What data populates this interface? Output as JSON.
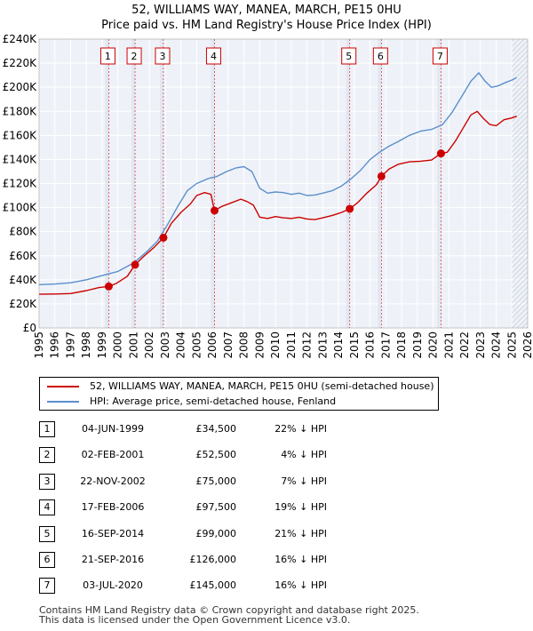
{
  "chart_data": {
    "type": "line",
    "title": "52, WILLIAMS WAY, MANEA, MARCH, PE15 0HU",
    "subtitle": "Price paid vs. HM Land Registry's House Price Index (HPI)",
    "xlim": [
      1995,
      2026
    ],
    "ylim": [
      0,
      240000
    ],
    "x_ticks": [
      "1995",
      "1996",
      "1997",
      "1998",
      "1999",
      "2000",
      "2001",
      "2002",
      "2003",
      "2004",
      "2005",
      "2006",
      "2007",
      "2008",
      "2009",
      "2010",
      "2011",
      "2012",
      "2013",
      "2014",
      "2015",
      "2016",
      "2017",
      "2018",
      "2019",
      "2020",
      "2021",
      "2022",
      "2023",
      "2024",
      "2025",
      "2026"
    ],
    "y_ticks": [
      {
        "value": 0,
        "label": "£0"
      },
      {
        "value": 20000,
        "label": "£20K"
      },
      {
        "value": 40000,
        "label": "£40K"
      },
      {
        "value": 60000,
        "label": "£60K"
      },
      {
        "value": 80000,
        "label": "£80K"
      },
      {
        "value": 100000,
        "label": "£100K"
      },
      {
        "value": 120000,
        "label": "£120K"
      },
      {
        "value": 140000,
        "label": "£140K"
      },
      {
        "value": 160000,
        "label": "£160K"
      },
      {
        "value": 180000,
        "label": "£180K"
      },
      {
        "value": 200000,
        "label": "£200K"
      },
      {
        "value": 220000,
        "label": "£220K"
      },
      {
        "value": 240000,
        "label": "£240K"
      }
    ],
    "series": [
      {
        "name": "52, WILLIAMS WAY, MANEA, MARCH, PE15 0HU (semi-detached house)",
        "color": "#cc0000",
        "points": [
          [
            1995.0,
            28000
          ],
          [
            1996.0,
            28200
          ],
          [
            1997.0,
            28600
          ],
          [
            1998.0,
            31000
          ],
          [
            1998.8,
            33500
          ],
          [
            1999.42,
            34500
          ],
          [
            1999.9,
            37000
          ],
          [
            2000.6,
            43000
          ],
          [
            2001.09,
            52500
          ],
          [
            2001.6,
            59000
          ],
          [
            2002.3,
            67000
          ],
          [
            2002.89,
            75000
          ],
          [
            2003.4,
            87000
          ],
          [
            2004.0,
            96000
          ],
          [
            2004.6,
            103000
          ],
          [
            2005.0,
            110000
          ],
          [
            2005.5,
            112500
          ],
          [
            2005.9,
            111000
          ],
          [
            2006.13,
            97500
          ],
          [
            2006.6,
            101000
          ],
          [
            2007.2,
            104000
          ],
          [
            2007.8,
            107000
          ],
          [
            2008.2,
            105000
          ],
          [
            2008.6,
            102000
          ],
          [
            2009.0,
            92000
          ],
          [
            2009.5,
            91000
          ],
          [
            2010.0,
            92500
          ],
          [
            2010.5,
            91500
          ],
          [
            2011.0,
            91000
          ],
          [
            2011.5,
            92000
          ],
          [
            2012.0,
            90500
          ],
          [
            2012.5,
            90000
          ],
          [
            2013.0,
            91500
          ],
          [
            2013.6,
            93500
          ],
          [
            2014.2,
            96000
          ],
          [
            2014.71,
            99000
          ],
          [
            2015.2,
            104000
          ],
          [
            2015.8,
            112000
          ],
          [
            2016.4,
            119000
          ],
          [
            2016.72,
            126000
          ],
          [
            2017.2,
            132000
          ],
          [
            2017.8,
            136000
          ],
          [
            2018.5,
            138000
          ],
          [
            2019.2,
            138500
          ],
          [
            2019.9,
            139500
          ],
          [
            2020.5,
            145000
          ],
          [
            2020.9,
            146000
          ],
          [
            2021.4,
            155000
          ],
          [
            2021.9,
            166000
          ],
          [
            2022.4,
            177000
          ],
          [
            2022.8,
            180000
          ],
          [
            2023.2,
            174000
          ],
          [
            2023.6,
            169000
          ],
          [
            2024.0,
            168000
          ],
          [
            2024.5,
            173000
          ],
          [
            2025.0,
            174500
          ],
          [
            2025.3,
            176000
          ]
        ]
      },
      {
        "name": "HPI: Average price, semi-detached house, Fenland",
        "color": "#5b8fcc",
        "points": [
          [
            1995.0,
            36000
          ],
          [
            1996.0,
            36500
          ],
          [
            1997.0,
            37500
          ],
          [
            1998.0,
            40000
          ],
          [
            1999.0,
            43500
          ],
          [
            2000.0,
            47000
          ],
          [
            2001.0,
            54000
          ],
          [
            2001.8,
            63000
          ],
          [
            2002.5,
            72000
          ],
          [
            2003.2,
            87000
          ],
          [
            2003.8,
            101000
          ],
          [
            2004.4,
            114000
          ],
          [
            2005.0,
            120000
          ],
          [
            2005.7,
            124000
          ],
          [
            2006.3,
            126000
          ],
          [
            2006.9,
            130000
          ],
          [
            2007.5,
            133000
          ],
          [
            2008.0,
            134000
          ],
          [
            2008.5,
            130000
          ],
          [
            2009.0,
            116000
          ],
          [
            2009.5,
            112000
          ],
          [
            2010.0,
            113000
          ],
          [
            2010.5,
            112500
          ],
          [
            2011.0,
            111000
          ],
          [
            2011.5,
            112000
          ],
          [
            2012.0,
            110000
          ],
          [
            2012.5,
            110500
          ],
          [
            2013.0,
            112000
          ],
          [
            2013.6,
            114000
          ],
          [
            2014.2,
            118000
          ],
          [
            2014.8,
            124000
          ],
          [
            2015.4,
            131000
          ],
          [
            2016.0,
            140000
          ],
          [
            2016.6,
            146000
          ],
          [
            2017.2,
            151000
          ],
          [
            2017.8,
            155000
          ],
          [
            2018.5,
            160000
          ],
          [
            2019.2,
            163500
          ],
          [
            2019.9,
            165000
          ],
          [
            2020.6,
            169000
          ],
          [
            2021.2,
            179000
          ],
          [
            2021.8,
            192000
          ],
          [
            2022.4,
            205000
          ],
          [
            2022.9,
            212000
          ],
          [
            2023.3,
            205000
          ],
          [
            2023.7,
            200000
          ],
          [
            2024.1,
            201000
          ],
          [
            2024.6,
            204000
          ],
          [
            2025.0,
            206000
          ],
          [
            2025.3,
            208000
          ]
        ]
      }
    ],
    "sales": [
      {
        "id": "1",
        "date": "04-JUN-1999",
        "x": 1999.42,
        "price": 34500,
        "price_label": "£34,500",
        "hpi": "22% ↓ HPI"
      },
      {
        "id": "2",
        "date": "02-FEB-2001",
        "x": 2001.09,
        "price": 52500,
        "price_label": "£52,500",
        "hpi": "4% ↓ HPI"
      },
      {
        "id": "3",
        "date": "22-NOV-2002",
        "x": 2002.89,
        "price": 75000,
        "price_label": "£75,000",
        "hpi": "7% ↓ HPI"
      },
      {
        "id": "4",
        "date": "17-FEB-2006",
        "x": 2006.13,
        "price": 97500,
        "price_label": "£97,500",
        "hpi": "19% ↓ HPI"
      },
      {
        "id": "5",
        "date": "16-SEP-2014",
        "x": 2014.71,
        "price": 99000,
        "price_label": "£99,000",
        "hpi": "21% ↓ HPI"
      },
      {
        "id": "6",
        "date": "21-SEP-2016",
        "x": 2016.72,
        "price": 126000,
        "price_label": "£126,000",
        "hpi": "16% ↓ HPI"
      },
      {
        "id": "7",
        "date": "03-JUL-2020",
        "x": 2020.5,
        "price": 145000,
        "price_label": "£145,000",
        "hpi": "16% ↓ HPI"
      }
    ],
    "forecast_start": 2025.0,
    "legend_position": "below-chart"
  },
  "footer": {
    "line1": "Contains HM Land Registry data © Crown copyright and database right 2025.",
    "line2": "This data is licensed under the Open Government Licence v3.0."
  }
}
